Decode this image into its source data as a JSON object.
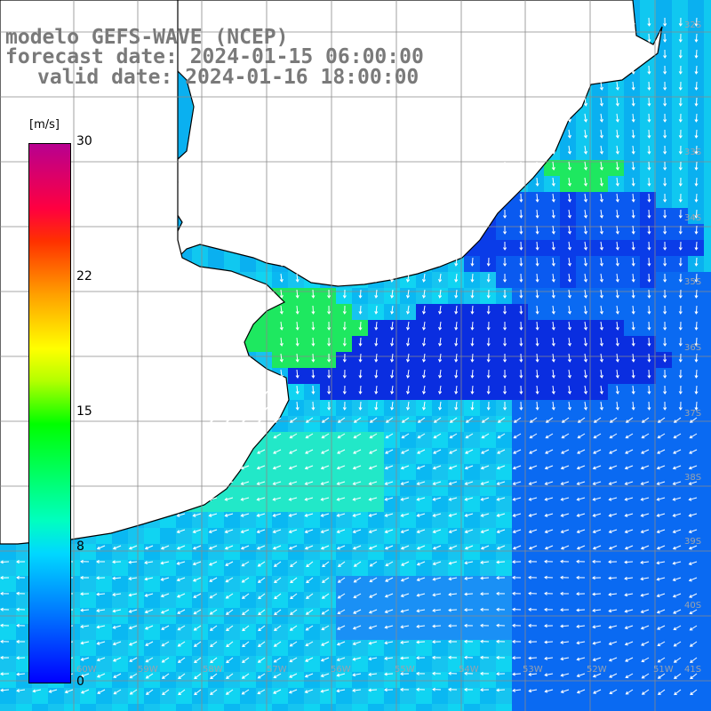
{
  "title": {
    "line1": "modelo GEFS-WAVE (NCEP)",
    "line2": "forecast date: 2024-01-15 06:00:00",
    "line3": "valid date: 2024-01-16 18:00:00"
  },
  "colorbar": {
    "unit": "[m/s]",
    "ticks": [
      "30",
      "22",
      "15",
      "8",
      "0"
    ],
    "min": 0,
    "max": 30
  },
  "latitude_labels": [
    "32S",
    "33S",
    "34S",
    "35S",
    "36S",
    "37S",
    "38S",
    "39S",
    "40S",
    "41S"
  ],
  "longitude_labels": [
    "60W",
    "59W",
    "58W",
    "57W",
    "56W",
    "55W",
    "54W",
    "53W",
    "52W",
    "51W"
  ],
  "colors": {
    "land": "#ffffff",
    "coastline": "#000000",
    "grid": "#8a8a8a",
    "arrows": "#ffffff",
    "title": "#7a7a7a"
  }
}
